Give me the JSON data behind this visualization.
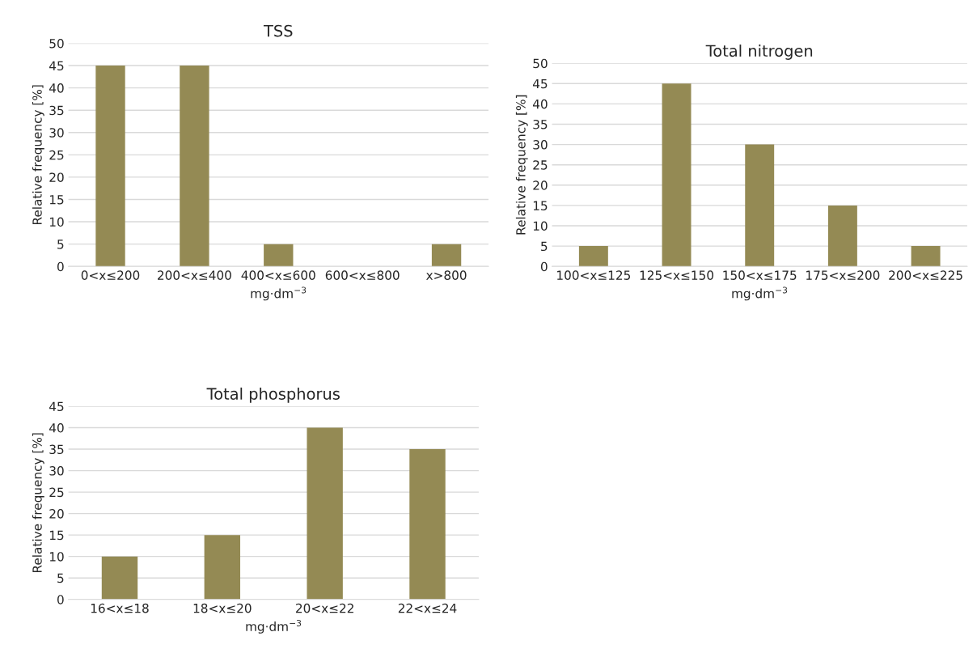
{
  "chart_data": [
    {
      "type": "bar",
      "title": "TSS",
      "xlabel": "mg·dm$^{−3}$",
      "ylabel": "Relative frequency [%]",
      "categories": [
        "0<x≤200",
        "200<x≤400",
        "400<x≤600",
        "600<x≤800",
        "x>800"
      ],
      "values": [
        45,
        45,
        5,
        0,
        5
      ],
      "color": "#948a54",
      "ylim": [
        0,
        50
      ],
      "yticks": [
        0,
        5,
        10,
        15,
        20,
        25,
        30,
        35,
        40,
        45,
        50
      ],
      "grid": "y",
      "legend": false
    },
    {
      "type": "bar",
      "title": "Total nitrogen",
      "xlabel": "mg·dm$^{−3}$",
      "ylabel": "Relative frequency [%]",
      "categories": [
        "100<x≤125",
        "125<x≤150",
        "150<x≤175",
        "175<x≤200",
        "200<x≤225"
      ],
      "values": [
        5,
        45,
        30,
        15,
        5
      ],
      "color": "#948a54",
      "ylim": [
        0,
        50
      ],
      "yticks": [
        0,
        5,
        10,
        15,
        20,
        25,
        30,
        35,
        40,
        45,
        50
      ],
      "grid": "y",
      "legend": false
    },
    {
      "type": "bar",
      "title": "Total phosphorus",
      "xlabel": "mg·dm$^{−3}$",
      "ylabel": "Relative frequency [%]",
      "categories": [
        "16<x≤18",
        "18<x≤20",
        "20<x≤22",
        "22<x≤24"
      ],
      "values": [
        10,
        15,
        40,
        35
      ],
      "color": "#948a54",
      "ylim": [
        0,
        45
      ],
      "yticks": [
        0,
        5,
        10,
        15,
        20,
        25,
        30,
        35,
        40,
        45
      ],
      "grid": "y",
      "legend": false
    }
  ]
}
